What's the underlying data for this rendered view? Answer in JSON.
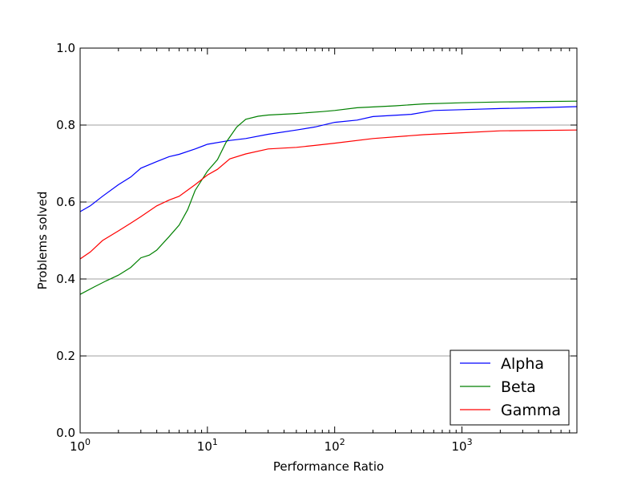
{
  "chart_data": {
    "type": "line",
    "title": "",
    "xlabel": "Performance Ratio",
    "ylabel": "Problems solved",
    "x_scale": "log",
    "xlim": [
      1,
      8000
    ],
    "ylim": [
      0.0,
      1.0
    ],
    "grid": "horizontal",
    "legend_position": "bottom-right",
    "x_ticks": [
      1,
      10,
      100,
      1000
    ],
    "x_tick_labels": [
      {
        "base": "10",
        "exp": "0"
      },
      {
        "base": "10",
        "exp": "1"
      },
      {
        "base": "10",
        "exp": "2"
      },
      {
        "base": "10",
        "exp": "3"
      }
    ],
    "y_ticks": [
      0.0,
      0.2,
      0.4,
      0.6,
      0.8,
      1.0
    ],
    "y_tick_labels": [
      "0.0",
      "0.2",
      "0.4",
      "0.6",
      "0.8",
      "1.0"
    ],
    "series": [
      {
        "name": "Alpha",
        "color": "#0000ff",
        "points": [
          [
            1.0,
            0.575
          ],
          [
            1.2,
            0.59
          ],
          [
            1.5,
            0.615
          ],
          [
            2.0,
            0.645
          ],
          [
            2.5,
            0.665
          ],
          [
            3.0,
            0.688
          ],
          [
            4.0,
            0.705
          ],
          [
            5.0,
            0.718
          ],
          [
            6.0,
            0.724
          ],
          [
            8.0,
            0.738
          ],
          [
            10.0,
            0.75
          ],
          [
            15.0,
            0.76
          ],
          [
            20.0,
            0.765
          ],
          [
            30.0,
            0.776
          ],
          [
            50.0,
            0.787
          ],
          [
            70.0,
            0.795
          ],
          [
            100.0,
            0.807
          ],
          [
            150.0,
            0.813
          ],
          [
            200.0,
            0.822
          ],
          [
            400.0,
            0.828
          ],
          [
            600.0,
            0.838
          ],
          [
            1000.0,
            0.84
          ],
          [
            2000.0,
            0.843
          ],
          [
            4000.0,
            0.845
          ],
          [
            8000.0,
            0.848
          ]
        ]
      },
      {
        "name": "Beta",
        "color": "#008000",
        "points": [
          [
            1.0,
            0.36
          ],
          [
            1.3,
            0.38
          ],
          [
            1.6,
            0.395
          ],
          [
            2.0,
            0.41
          ],
          [
            2.5,
            0.43
          ],
          [
            3.0,
            0.455
          ],
          [
            3.5,
            0.462
          ],
          [
            4.0,
            0.475
          ],
          [
            5.0,
            0.51
          ],
          [
            6.0,
            0.54
          ],
          [
            7.0,
            0.58
          ],
          [
            8.0,
            0.63
          ],
          [
            10.0,
            0.68
          ],
          [
            12.0,
            0.71
          ],
          [
            14.0,
            0.755
          ],
          [
            17.0,
            0.795
          ],
          [
            20.0,
            0.815
          ],
          [
            25.0,
            0.823
          ],
          [
            30.0,
            0.826
          ],
          [
            50.0,
            0.83
          ],
          [
            80.0,
            0.835
          ],
          [
            100.0,
            0.838
          ],
          [
            150.0,
            0.845
          ],
          [
            300.0,
            0.85
          ],
          [
            500.0,
            0.855
          ],
          [
            1000.0,
            0.858
          ],
          [
            2000.0,
            0.86
          ],
          [
            8000.0,
            0.862
          ]
        ]
      },
      {
        "name": "Gamma",
        "color": "#ff0000",
        "points": [
          [
            1.0,
            0.452
          ],
          [
            1.2,
            0.47
          ],
          [
            1.5,
            0.5
          ],
          [
            2.0,
            0.525
          ],
          [
            2.5,
            0.545
          ],
          [
            3.0,
            0.562
          ],
          [
            4.0,
            0.59
          ],
          [
            5.0,
            0.605
          ],
          [
            6.0,
            0.615
          ],
          [
            8.0,
            0.645
          ],
          [
            10.0,
            0.67
          ],
          [
            12.0,
            0.685
          ],
          [
            15.0,
            0.712
          ],
          [
            20.0,
            0.725
          ],
          [
            30.0,
            0.738
          ],
          [
            50.0,
            0.742
          ],
          [
            70.0,
            0.747
          ],
          [
            100.0,
            0.753
          ],
          [
            200.0,
            0.765
          ],
          [
            500.0,
            0.775
          ],
          [
            1000.0,
            0.78
          ],
          [
            2000.0,
            0.785
          ],
          [
            8000.0,
            0.787
          ]
        ]
      }
    ]
  }
}
